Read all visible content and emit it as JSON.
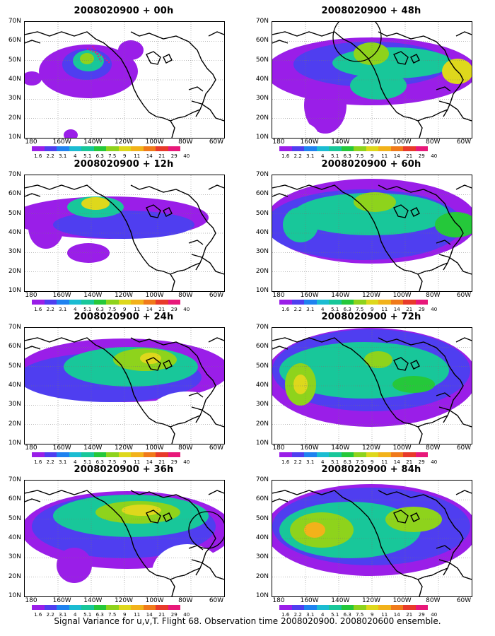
{
  "caption": "Signal Variance for u,v,T. Flight 68. Observation time 2008020900. 2008020600 ensemble.",
  "lat_labels": [
    "70N",
    "60N",
    "50N",
    "40N",
    "30N",
    "20N",
    "10N"
  ],
  "lon_labels": [
    "180",
    "160W",
    "140W",
    "120W",
    "100W",
    "80W",
    "60W"
  ],
  "colorbar": {
    "labels": [
      "1.6",
      "2.2",
      "3.1",
      "4",
      "5.1",
      "6.3",
      "7.5",
      "9",
      "11",
      "14",
      "21",
      "29",
      "40"
    ],
    "colors": [
      "#9a1ee8",
      "#4f3ef0",
      "#1f82f0",
      "#1bbcd2",
      "#18c79a",
      "#25c83a",
      "#8ed31c",
      "#ded81c",
      "#f2b21a",
      "#f07a1a",
      "#e83a2a",
      "#e8187a"
    ]
  },
  "panels": [
    {
      "title": "2008020900 + 00h"
    },
    {
      "title": "2008020900 + 48h"
    },
    {
      "title": "2008020900 + 12h"
    },
    {
      "title": "2008020900 + 60h"
    },
    {
      "title": "2008020900 + 24h"
    },
    {
      "title": "2008020900 + 72h"
    },
    {
      "title": "2008020900 + 36h"
    },
    {
      "title": "2008020900 + 84h"
    }
  ]
}
